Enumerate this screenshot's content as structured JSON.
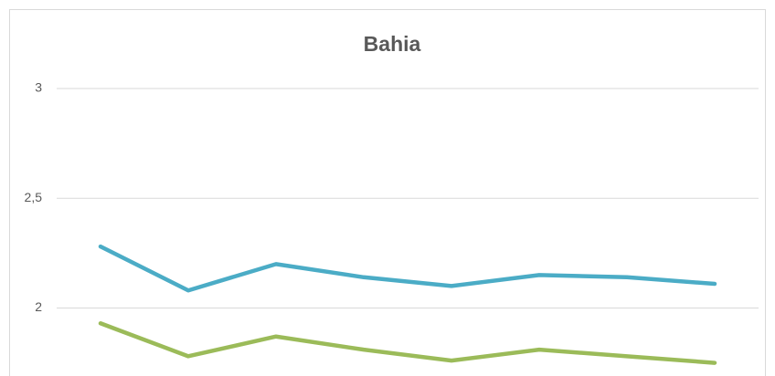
{
  "chart_data": {
    "type": "line",
    "title": "Bahia",
    "categories": [
      null,
      null,
      null,
      null,
      null,
      null,
      null,
      null
    ],
    "series": [
      {
        "color": "#4bacc6",
        "values": [
          2.28,
          2.08,
          2.2,
          2.14,
          2.1,
          2.15,
          2.14,
          2.11
        ]
      },
      {
        "color": "#9bbb59",
        "values": [
          1.93,
          1.78,
          1.87,
          1.81,
          1.76,
          1.81,
          1.78,
          1.75
        ]
      }
    ],
    "ylim": [
      1.69,
      3
    ],
    "yticks": [
      2,
      {
        "value": 2.5,
        "label": "2,5"
      },
      3
    ],
    "grid": true
  }
}
